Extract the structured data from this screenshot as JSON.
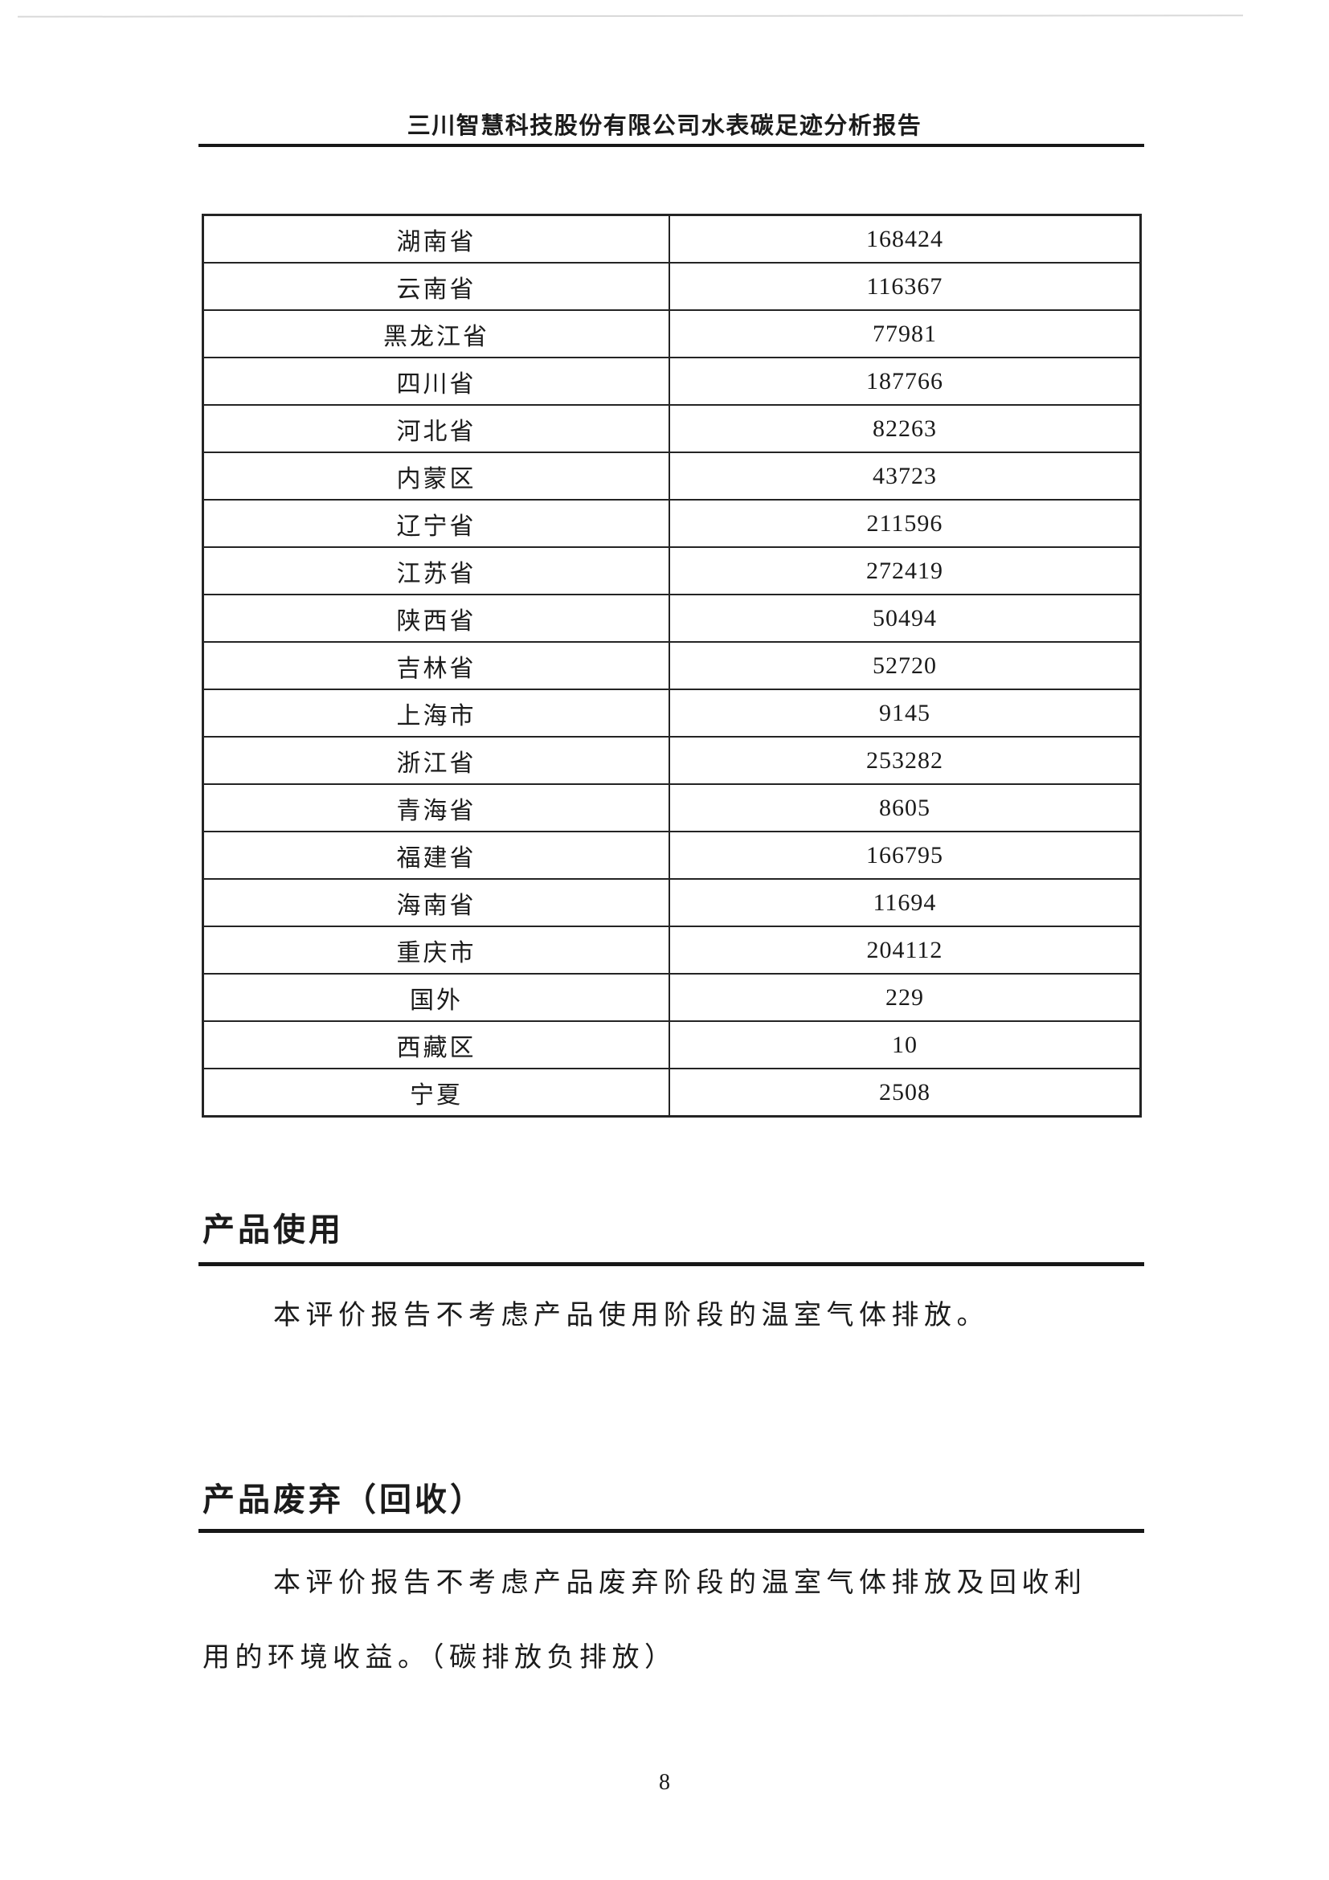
{
  "document": {
    "header_title": "三川智慧科技股份有限公司水表碳足迹分析报告",
    "page_number": "8"
  },
  "table": {
    "rows": [
      {
        "region": "湖南省",
        "value": "168424"
      },
      {
        "region": "云南省",
        "value": "116367"
      },
      {
        "region": "黑龙江省",
        "value": "77981"
      },
      {
        "region": "四川省",
        "value": "187766"
      },
      {
        "region": "河北省",
        "value": "82263"
      },
      {
        "region": "内蒙区",
        "value": "43723"
      },
      {
        "region": "辽宁省",
        "value": "211596"
      },
      {
        "region": "江苏省",
        "value": "272419"
      },
      {
        "region": "陕西省",
        "value": "50494"
      },
      {
        "region": "吉林省",
        "value": "52720"
      },
      {
        "region": "上海市",
        "value": "9145"
      },
      {
        "region": "浙江省",
        "value": "253282"
      },
      {
        "region": "青海省",
        "value": "8605"
      },
      {
        "region": "福建省",
        "value": "166795"
      },
      {
        "region": "海南省",
        "value": "11694"
      },
      {
        "region": "重庆市",
        "value": "204112"
      },
      {
        "region": "国外",
        "value": "229"
      },
      {
        "region": "西藏区",
        "value": "10"
      },
      {
        "region": "宁夏",
        "value": "2508"
      }
    ]
  },
  "sections": [
    {
      "heading": "产品使用",
      "lines": [
        "本评价报告不考虑产品使用阶段的温室气体排放。"
      ]
    },
    {
      "heading": "产品废弃（回收）",
      "lines": [
        "本评价报告不考虑产品废弃阶段的温室气体排放及回收利",
        "用的环境收益。（碳排放负排放）"
      ]
    }
  ]
}
